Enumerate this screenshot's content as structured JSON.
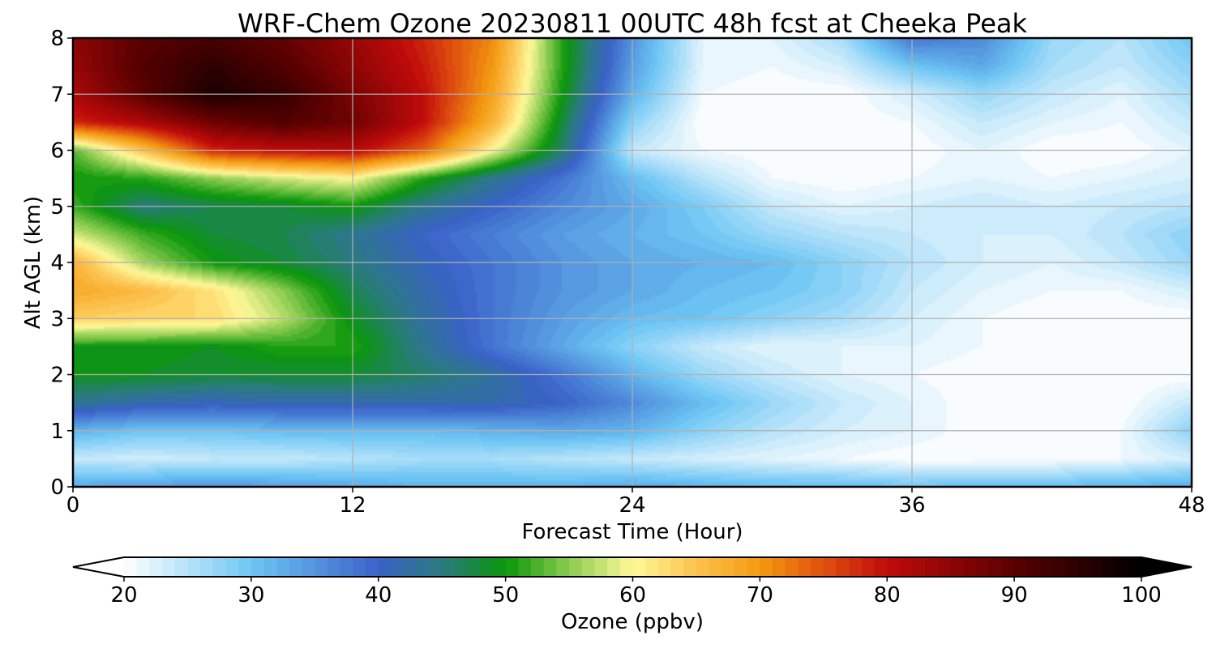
{
  "chart_data": {
    "type": "heatmap",
    "title": "WRF-Chem Ozone  20230811 00UTC 48h fcst at Cheeka Peak",
    "xlabel": "Forecast Time (Hour)",
    "ylabel": "Alt AGL (km)",
    "xlim": [
      0,
      48
    ],
    "ylim": [
      0,
      8
    ],
    "x_ticks": [
      0,
      12,
      24,
      36,
      48
    ],
    "x_tick_labels": [
      "0",
      "12",
      "24",
      "36",
      "48"
    ],
    "y_ticks": [
      0,
      1,
      2,
      3,
      4,
      5,
      6,
      7,
      8
    ],
    "y_tick_labels": [
      "0",
      "1",
      "2",
      "3",
      "4",
      "5",
      "6",
      "7",
      "8"
    ],
    "grid": true,
    "x": [
      0,
      3,
      6,
      9,
      12,
      15,
      18,
      21,
      24,
      27,
      30,
      33,
      36,
      39,
      42,
      45,
      48
    ],
    "y": [
      0,
      0.5,
      1,
      1.5,
      2,
      2.5,
      3,
      3.5,
      4,
      4.5,
      5,
      5.5,
      6,
      6.5,
      7,
      7.5,
      8
    ],
    "z": [
      [
        33,
        34,
        35,
        34,
        33,
        32,
        32,
        32,
        33,
        32,
        31,
        31,
        30,
        31,
        31,
        32,
        33
      ],
      [
        24,
        23,
        24,
        24,
        25,
        26,
        26,
        25,
        24,
        23,
        22,
        21,
        20,
        20,
        20,
        21,
        23
      ],
      [
        32,
        30,
        30,
        31,
        31,
        31,
        32,
        33,
        32,
        28,
        25,
        23,
        22,
        20,
        20,
        21,
        28
      ],
      [
        44,
        42,
        41,
        42,
        42,
        42,
        42,
        40,
        36,
        31,
        27,
        24,
        22,
        20,
        20,
        20,
        24
      ],
      [
        49,
        49,
        48,
        48,
        48,
        46,
        43,
        38,
        32,
        27,
        24,
        22,
        21,
        20,
        20,
        20,
        20
      ],
      [
        50,
        50,
        49,
        51,
        51,
        44,
        38,
        33,
        28,
        24,
        22,
        22,
        22,
        21,
        20,
        20,
        20
      ],
      [
        64,
        63,
        63,
        57,
        49,
        43,
        38,
        34,
        31,
        30,
        28,
        26,
        23,
        21,
        20,
        20,
        20
      ],
      [
        68,
        66,
        62,
        55,
        47,
        42,
        38,
        35,
        33,
        31,
        30,
        28,
        24,
        22,
        21,
        21,
        23
      ],
      [
        67,
        56,
        50,
        48,
        45,
        41,
        38,
        35,
        33,
        32,
        31,
        28,
        25,
        23,
        22,
        24,
        27
      ],
      [
        58,
        52,
        48,
        47,
        44,
        40,
        37,
        34,
        32,
        30,
        27,
        25,
        24,
        23,
        23,
        25,
        28
      ],
      [
        52,
        45,
        47,
        48,
        50,
        44,
        40,
        36,
        33,
        29,
        24,
        22,
        23,
        24,
        23,
        24,
        25
      ],
      [
        50,
        51,
        55,
        58,
        60,
        51,
        44,
        38,
        31,
        25,
        21,
        20,
        21,
        22,
        21,
        22,
        23
      ],
      [
        53,
        65,
        78,
        80,
        81,
        74,
        60,
        46,
        24,
        21,
        20,
        20,
        20,
        22,
        20,
        20,
        22
      ],
      [
        78,
        82,
        88,
        91,
        88,
        80,
        67,
        48,
        28,
        20,
        20,
        20,
        21,
        24,
        22,
        21,
        24
      ],
      [
        82,
        90,
        97,
        94,
        87,
        80,
        69,
        50,
        32,
        21,
        20,
        20,
        23,
        27,
        24,
        22,
        26
      ],
      [
        84,
        91,
        95,
        91,
        85,
        79,
        70,
        51,
        34,
        22,
        21,
        23,
        30,
        33,
        26,
        24,
        28
      ],
      [
        85,
        90,
        92,
        89,
        84,
        78,
        71,
        51,
        35,
        22,
        22,
        26,
        38,
        36,
        27,
        25,
        30
      ]
    ],
    "colorbar": {
      "label": "Ozone  (ppbv)",
      "min": 20,
      "max": 100,
      "ticks": [
        20,
        30,
        40,
        50,
        60,
        70,
        80,
        90,
        100
      ],
      "tick_labels": [
        "20",
        "30",
        "40",
        "50",
        "60",
        "70",
        "80",
        "90",
        "100"
      ],
      "extend": "both",
      "stops": [
        {
          "v": 20,
          "c": "#ffffff"
        },
        {
          "v": 30,
          "c": "#6ec6f4"
        },
        {
          "v": 40,
          "c": "#3a62c8"
        },
        {
          "v": 45,
          "c": "#2a7a80"
        },
        {
          "v": 50,
          "c": "#0a960a"
        },
        {
          "v": 55,
          "c": "#8ccc50"
        },
        {
          "v": 60,
          "c": "#fff89a"
        },
        {
          "v": 65,
          "c": "#fdc24e"
        },
        {
          "v": 70,
          "c": "#f39a10"
        },
        {
          "v": 75,
          "c": "#e05010"
        },
        {
          "v": 80,
          "c": "#c00a0a"
        },
        {
          "v": 90,
          "c": "#5a0000"
        },
        {
          "v": 100,
          "c": "#000000"
        }
      ]
    }
  }
}
